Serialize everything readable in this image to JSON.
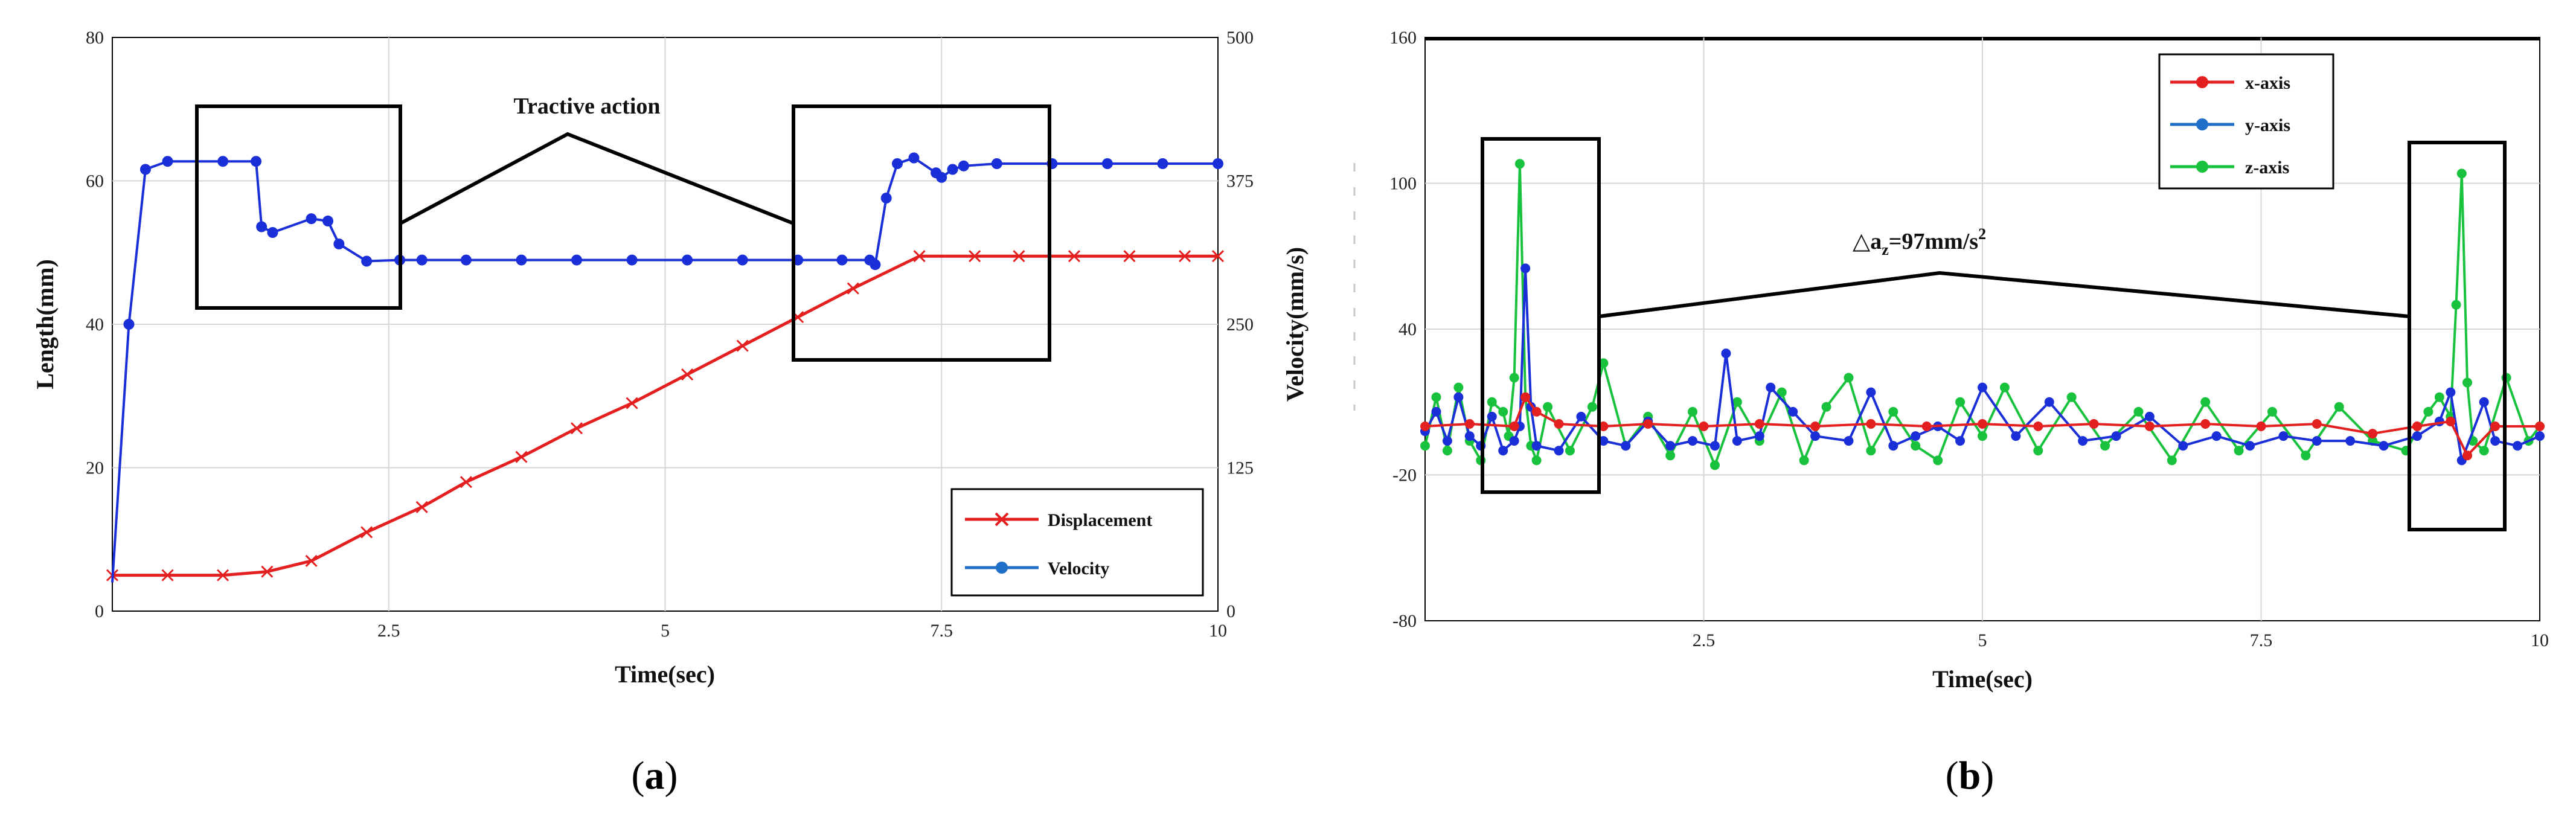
{
  "panels": {
    "a": {
      "label_prefix": "(",
      "label_letter": "a",
      "label_suffix": ")"
    },
    "b": {
      "label_prefix": "(",
      "label_letter": "b",
      "label_suffix": ")"
    }
  },
  "colors": {
    "red": "#e41f1f",
    "blue": "#1a2fd8",
    "green": "#19c23c",
    "legend_blue": "#1f6fc8",
    "grid": "#d6d6d6",
    "axis": "#000000"
  },
  "chart_data": [
    {
      "type": "line",
      "title": "",
      "xlabel": "Time(sec)",
      "ylabel": "Length(mm)",
      "ylabel_right": "Velocity(mm/s)",
      "xlim": [
        0,
        10
      ],
      "ylim": [
        0,
        80
      ],
      "ylim_right": [
        0,
        500
      ],
      "x_ticks": [
        "2.5",
        "5",
        "7.5",
        "10"
      ],
      "y_ticks": [
        "0",
        "20",
        "40",
        "60",
        "80"
      ],
      "y_ticks_right": [
        "0",
        "125",
        "250",
        "375",
        "500"
      ],
      "grid": true,
      "legend_position": "bottom-right",
      "annotation": "Tractive action",
      "series": [
        {
          "name": "Displacement",
          "axis": "left",
          "marker": "x",
          "x": [
            0,
            0.5,
            1.0,
            1.4,
            1.8,
            2.3,
            2.8,
            3.2,
            3.7,
            4.2,
            4.7,
            5.2,
            5.7,
            6.2,
            6.7,
            7.3,
            7.8,
            8.2,
            8.7,
            9.2,
            9.7,
            10
          ],
          "y": [
            5,
            5,
            5,
            5.5,
            7,
            11,
            14.5,
            18,
            21.5,
            25.5,
            29,
            33,
            37,
            41,
            45,
            49.5,
            49.5,
            49.5,
            49.5,
            49.5,
            49.5,
            49.5
          ]
        },
        {
          "name": "Velocity",
          "axis": "right",
          "marker": "o",
          "x": [
            0,
            0.15,
            0.3,
            0.5,
            1.0,
            1.3,
            1.35,
            1.45,
            1.8,
            1.95,
            2.05,
            2.3,
            2.6,
            2.8,
            3.2,
            3.7,
            4.2,
            4.7,
            5.2,
            5.7,
            6.2,
            6.6,
            6.85,
            6.9,
            7.0,
            7.1,
            7.25,
            7.45,
            7.5,
            7.6,
            7.7,
            8.0,
            8.5,
            9.0,
            9.5,
            10
          ],
          "y": [
            25,
            250,
            385,
            392,
            392,
            392,
            335,
            330,
            342,
            340,
            320,
            305,
            306,
            306,
            306,
            306,
            306,
            306,
            306,
            306,
            306,
            306,
            306,
            302,
            360,
            390,
            395,
            382,
            378,
            385,
            388,
            390,
            390,
            390,
            390,
            390
          ]
        }
      ]
    },
    {
      "type": "line",
      "title": "",
      "xlabel": "Time(sec)",
      "ylabel": "",
      "xlim": [
        0,
        10
      ],
      "ylim": [
        -80,
        160
      ],
      "x_ticks": [
        "2.5",
        "5",
        "7.5",
        "10"
      ],
      "y_ticks": [
        "-80",
        "-20",
        "40",
        "100",
        "160"
      ],
      "grid": true,
      "legend_position": "top-right",
      "annotation_prefix": "△a",
      "annotation_sub": "z",
      "annotation_value": "=97mm/s",
      "annotation_sup": "2",
      "series": [
        {
          "name": "x-axis",
          "x": [
            0,
            0.4,
            0.8,
            0.9,
            1.0,
            1.2,
            1.6,
            2.0,
            2.5,
            3.0,
            3.5,
            4.0,
            4.5,
            5.0,
            5.5,
            6.0,
            6.5,
            7.0,
            7.5,
            8.0,
            8.5,
            8.9,
            9.2,
            9.35,
            9.6,
            10
          ],
          "y": [
            0,
            1,
            0,
            12,
            6,
            1,
            0,
            1,
            0,
            1,
            0,
            1,
            0,
            1,
            0,
            1,
            0,
            1,
            0,
            1,
            -3,
            0,
            2,
            -12,
            0,
            0
          ]
        },
        {
          "name": "y-axis",
          "x": [
            0,
            0.1,
            0.2,
            0.3,
            0.4,
            0.5,
            0.6,
            0.7,
            0.8,
            0.85,
            0.9,
            0.95,
            1.0,
            1.2,
            1.4,
            1.6,
            1.8,
            2.0,
            2.2,
            2.4,
            2.6,
            2.7,
            2.8,
            3.0,
            3.1,
            3.3,
            3.5,
            3.8,
            4.0,
            4.2,
            4.4,
            4.6,
            4.8,
            5.0,
            5.3,
            5.6,
            5.9,
            6.2,
            6.5,
            6.8,
            7.1,
            7.4,
            7.7,
            8.0,
            8.3,
            8.6,
            8.9,
            9.1,
            9.2,
            9.3,
            9.5,
            9.6,
            9.8,
            10
          ],
          "y": [
            -2,
            6,
            -6,
            12,
            -4,
            -8,
            4,
            -10,
            -6,
            0,
            65,
            8,
            -8,
            -10,
            4,
            -6,
            -8,
            2,
            -8,
            -6,
            -8,
            30,
            -6,
            -4,
            16,
            6,
            -4,
            -6,
            14,
            -8,
            -4,
            0,
            -6,
            16,
            -4,
            10,
            -6,
            -4,
            4,
            -8,
            -4,
            -8,
            -4,
            -6,
            -6,
            -8,
            -4,
            2,
            14,
            -14,
            10,
            -6,
            -8,
            -4
          ]
        },
        {
          "name": "z-axis",
          "x": [
            0,
            0.1,
            0.2,
            0.3,
            0.4,
            0.5,
            0.6,
            0.7,
            0.75,
            0.8,
            0.85,
            0.9,
            0.95,
            1.0,
            1.1,
            1.3,
            1.5,
            1.6,
            1.8,
            2.0,
            2.2,
            2.4,
            2.6,
            2.8,
            3.0,
            3.2,
            3.4,
            3.6,
            3.8,
            4.0,
            4.2,
            4.4,
            4.6,
            4.8,
            5.0,
            5.2,
            5.5,
            5.8,
            6.1,
            6.4,
            6.7,
            7.0,
            7.3,
            7.6,
            7.9,
            8.2,
            8.5,
            8.8,
            9.0,
            9.1,
            9.2,
            9.25,
            9.3,
            9.35,
            9.4,
            9.5,
            9.7,
            9.9,
            10
          ],
          "y": [
            -8,
            12,
            -10,
            16,
            -6,
            -14,
            10,
            6,
            -4,
            20,
            108,
            12,
            -8,
            -14,
            8,
            -10,
            8,
            26,
            -8,
            4,
            -12,
            6,
            -16,
            10,
            -6,
            14,
            -14,
            8,
            20,
            -10,
            6,
            -8,
            -14,
            10,
            -4,
            16,
            -10,
            12,
            -8,
            6,
            -14,
            10,
            -10,
            6,
            -12,
            8,
            -6,
            -10,
            6,
            12,
            4,
            50,
            104,
            18,
            -6,
            -10,
            20,
            -6,
            0
          ]
        }
      ]
    }
  ]
}
